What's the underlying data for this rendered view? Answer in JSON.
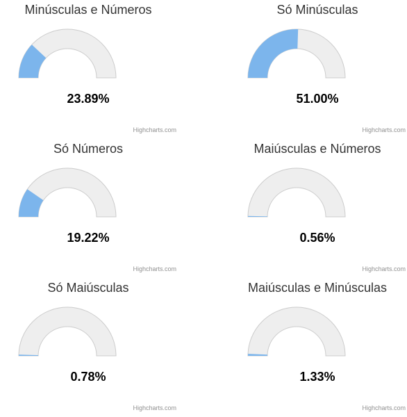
{
  "chart_data": [
    {
      "type": "gauge",
      "title": "Minúsculas e Números",
      "value": 23.89,
      "value_label": "23.89%",
      "min": 0,
      "max": 100,
      "credit": "Highcharts.com"
    },
    {
      "type": "gauge",
      "title": "Só Minúsculas",
      "value": 51.0,
      "value_label": "51.00%",
      "min": 0,
      "max": 100,
      "credit": "Highcharts.com"
    },
    {
      "type": "gauge",
      "title": "Só Números",
      "value": 19.22,
      "value_label": "19.22%",
      "min": 0,
      "max": 100,
      "credit": "Highcharts.com"
    },
    {
      "type": "gauge",
      "title": "Maiúsculas e Números",
      "value": 0.56,
      "value_label": "0.56%",
      "min": 0,
      "max": 100,
      "credit": "Highcharts.com"
    },
    {
      "type": "gauge",
      "title": "Só Maiúsculas",
      "value": 0.78,
      "value_label": "0.78%",
      "min": 0,
      "max": 100,
      "credit": "Highcharts.com"
    },
    {
      "type": "gauge",
      "title": "Maiúsculas e Minúsculas",
      "value": 1.33,
      "value_label": "1.33%",
      "min": 0,
      "max": 100,
      "credit": "Highcharts.com"
    }
  ],
  "colors": {
    "fill": "#7cb5ec",
    "track": "#eeeeee",
    "track_border": "#cccccc",
    "title": "#333333",
    "credit": "#909090"
  }
}
